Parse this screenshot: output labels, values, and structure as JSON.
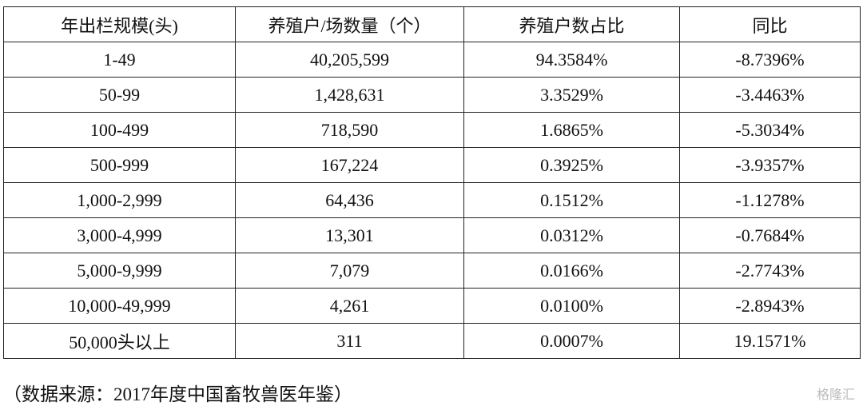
{
  "table": {
    "header": [
      "年出栏规模(头)",
      "养殖户/场数量（个）",
      "养殖户数占比",
      "同比"
    ],
    "rows": [
      [
        "1-49",
        "40,205,599",
        "94.3584%",
        "-8.7396%"
      ],
      [
        "50-99",
        "1,428,631",
        "3.3529%",
        "-3.4463%"
      ],
      [
        "100-499",
        "718,590",
        "1.6865%",
        "-5.3034%"
      ],
      [
        "500-999",
        "167,224",
        "0.3925%",
        "-3.9357%"
      ],
      [
        "1,000-2,999",
        "64,436",
        "0.1512%",
        "-1.1278%"
      ],
      [
        "3,000-4,999",
        "13,301",
        "0.0312%",
        "-0.7684%"
      ],
      [
        "5,000-9,999",
        "7,079",
        "0.0166%",
        "-2.7743%"
      ],
      [
        "10,000-49,999",
        "4,261",
        "0.0100%",
        "-2.8943%"
      ],
      [
        "50,000头以上",
        "311",
        "0.0007%",
        "19.1571%"
      ]
    ]
  },
  "caption": "（数据来源：2017年度中国畜牧兽医年鉴）",
  "watermark": "格隆汇"
}
